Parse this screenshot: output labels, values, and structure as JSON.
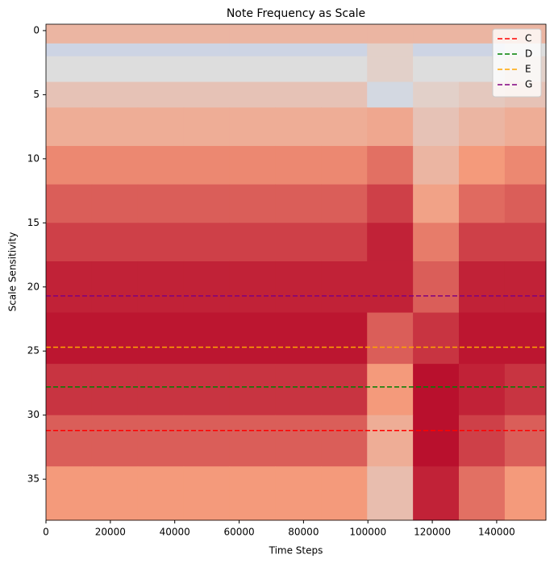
{
  "chart_data": {
    "type": "heatmap",
    "title": "Note Frequency as Scale",
    "xlabel": "Time Steps",
    "ylabel": "Scale Sensitivity",
    "colormap": "coolwarm",
    "x_edges": [
      0,
      14250,
      28500,
      42750,
      57000,
      71250,
      85500,
      99750,
      114000,
      128250,
      142500,
      155300
    ],
    "y_edges": [
      -0.5,
      1,
      2,
      4,
      6,
      9,
      12,
      15,
      18,
      22,
      26,
      30,
      34,
      38.2
    ],
    "z": [
      [
        0.65,
        0.65,
        0.65,
        0.65,
        0.65,
        0.65,
        0.65,
        0.65,
        0.65,
        0.65,
        0.65
      ],
      [
        0.45,
        0.45,
        0.45,
        0.45,
        0.45,
        0.45,
        0.45,
        0.55,
        0.45,
        0.45,
        0.5
      ],
      [
        0.5,
        0.5,
        0.5,
        0.5,
        0.5,
        0.5,
        0.5,
        0.55,
        0.5,
        0.5,
        0.55
      ],
      [
        0.6,
        0.6,
        0.6,
        0.6,
        0.6,
        0.6,
        0.6,
        0.47,
        0.55,
        0.58,
        0.6
      ],
      [
        0.68,
        0.68,
        0.68,
        0.68,
        0.68,
        0.68,
        0.68,
        0.7,
        0.6,
        0.65,
        0.68
      ],
      [
        0.78,
        0.78,
        0.78,
        0.78,
        0.78,
        0.78,
        0.78,
        0.82,
        0.65,
        0.75,
        0.78
      ],
      [
        0.85,
        0.85,
        0.85,
        0.85,
        0.85,
        0.85,
        0.85,
        0.9,
        0.72,
        0.83,
        0.85
      ],
      [
        0.9,
        0.9,
        0.9,
        0.9,
        0.9,
        0.9,
        0.9,
        0.95,
        0.8,
        0.9,
        0.9
      ],
      [
        0.95,
        0.95,
        0.95,
        0.95,
        0.95,
        0.95,
        0.95,
        0.95,
        0.85,
        0.95,
        0.95
      ],
      [
        0.97,
        0.97,
        0.97,
        0.97,
        0.97,
        0.97,
        0.97,
        0.85,
        0.92,
        0.97,
        0.97
      ],
      [
        0.92,
        0.92,
        0.92,
        0.92,
        0.92,
        0.92,
        0.92,
        0.75,
        0.98,
        0.95,
        0.92
      ],
      [
        0.85,
        0.85,
        0.85,
        0.85,
        0.85,
        0.85,
        0.85,
        0.68,
        0.98,
        0.9,
        0.85
      ],
      [
        0.75,
        0.75,
        0.75,
        0.75,
        0.75,
        0.75,
        0.75,
        0.62,
        0.95,
        0.82,
        0.75
      ]
    ],
    "lines": [
      {
        "name": "C",
        "color": "red",
        "value": 31.2
      },
      {
        "name": "D",
        "color": "green",
        "value": 27.8
      },
      {
        "name": "E",
        "color": "orange",
        "value": 24.7
      },
      {
        "name": "G",
        "color": "purple",
        "value": 20.7
      }
    ],
    "legend": "upper right",
    "xlim": [
      0,
      155300
    ],
    "ylim": [
      38.2,
      -0.5
    ],
    "xticks": [
      0,
      20000,
      40000,
      60000,
      80000,
      100000,
      120000,
      140000
    ],
    "yticks": [
      0,
      5,
      10,
      15,
      20,
      25,
      30,
      35
    ]
  }
}
